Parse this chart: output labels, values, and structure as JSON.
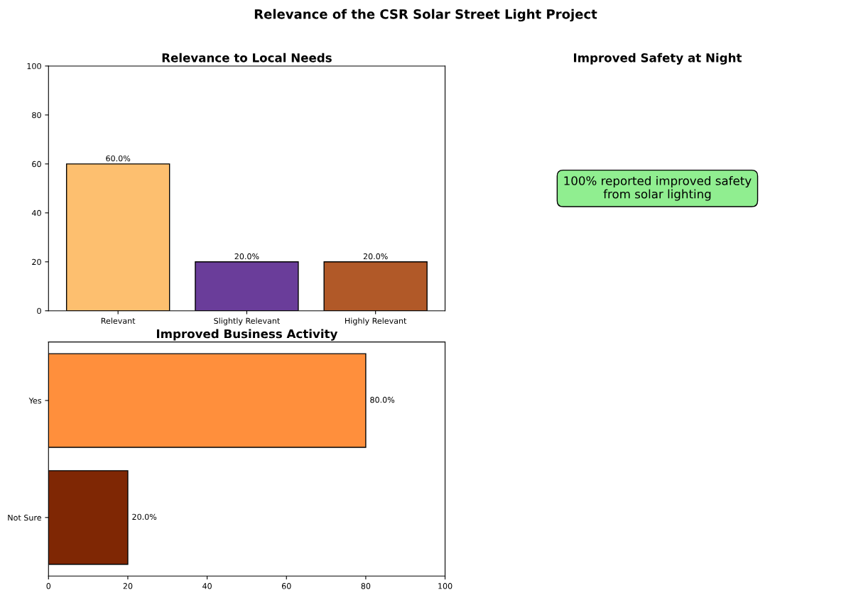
{
  "chart_data": [
    {
      "type": "bar",
      "title": "Relevance to Local Needs",
      "categories": [
        "Relevant",
        "Slightly Relevant",
        "Highly Relevant"
      ],
      "values": [
        60,
        20,
        20
      ],
      "colors": [
        "#fdbf6f",
        "#6a3d9a",
        "#b15928"
      ],
      "value_labels": [
        "60.0%",
        "20.0%",
        "20.0%"
      ],
      "ylim": [
        0,
        100
      ],
      "yticks": [
        0,
        20,
        40,
        60,
        80,
        100
      ],
      "grid": false,
      "annotations": [
        "Relevance of the CSR Solar Street Light Project"
      ]
    },
    {
      "type": "other",
      "title": "Improved Safety at Night",
      "annotations": [
        "100% reported improved safety\nfrom solar lighting"
      ]
    },
    {
      "type": "bar",
      "orientation": "horizontal",
      "title": "Improved Business Activity",
      "categories": [
        "Yes",
        "Not Sure"
      ],
      "values": [
        80,
        20
      ],
      "colors": [
        "#ff8f3c",
        "#7f2704"
      ],
      "value_labels": [
        "80.0%",
        "20.0%"
      ],
      "xlim": [
        0,
        100
      ],
      "xticks": [
        0,
        20,
        40,
        60,
        80,
        100
      ],
      "grid": false
    }
  ]
}
